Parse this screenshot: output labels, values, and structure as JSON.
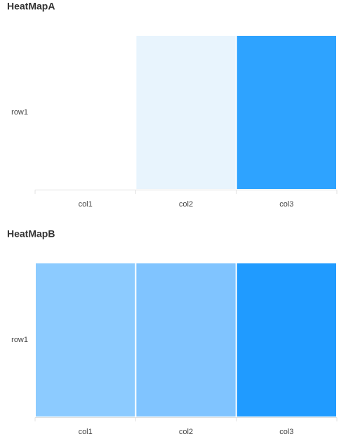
{
  "chart_data": [
    {
      "type": "heatmap",
      "title": "HeatMapA",
      "x_categories": [
        "col1",
        "col2",
        "col3"
      ],
      "y_categories": [
        "row1"
      ],
      "cell_colors": [
        [
          "#ffffff",
          "#e8f4fd",
          "#2ea3ff"
        ]
      ]
    },
    {
      "type": "heatmap",
      "title": "HeatMapB",
      "x_categories": [
        "col1",
        "col2",
        "col3"
      ],
      "y_categories": [
        "row1"
      ],
      "cell_colors": [
        [
          "#8ccbff",
          "#80c4ff",
          "#209bff"
        ]
      ]
    }
  ]
}
